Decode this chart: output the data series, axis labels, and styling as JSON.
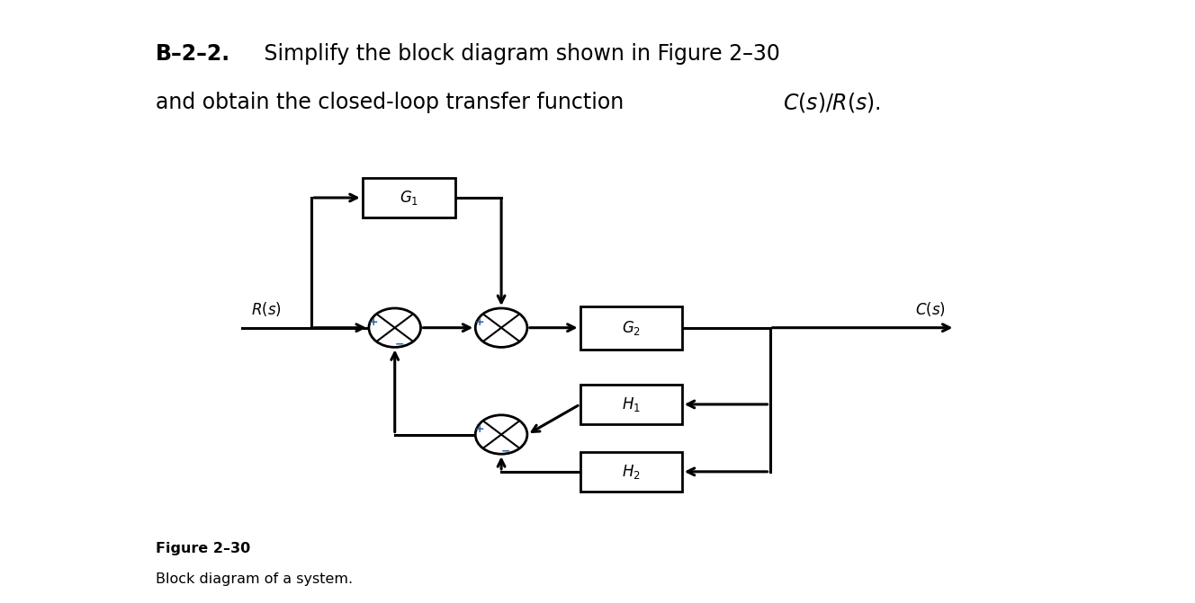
{
  "background_color": "#ffffff",
  "block_facecolor": "#ffffff",
  "block_edgecolor": "#000000",
  "line_color": "#000000",
  "text_color": "#000000",
  "sign_color_plus": "#4472c4",
  "sign_color_minus": "#4472c4",
  "labels": {
    "G1": "$G_1$",
    "G2": "$G_2$",
    "H1": "$H_1$",
    "H2": "$H_2$",
    "Rs": "$R(s)$",
    "Cs": "$C(s)$"
  },
  "title_bold": "B–2–2.",
  "title_rest_line1": " Simplify the block diagram shown in Figure 2–30",
  "title_line2_normal": "and obtain the closed-loop transfer function ",
  "title_line2_italic": "$C(s)/R(s)$.",
  "caption_bold": "Figure 2–30",
  "caption_normal": "Block diagram of a system."
}
